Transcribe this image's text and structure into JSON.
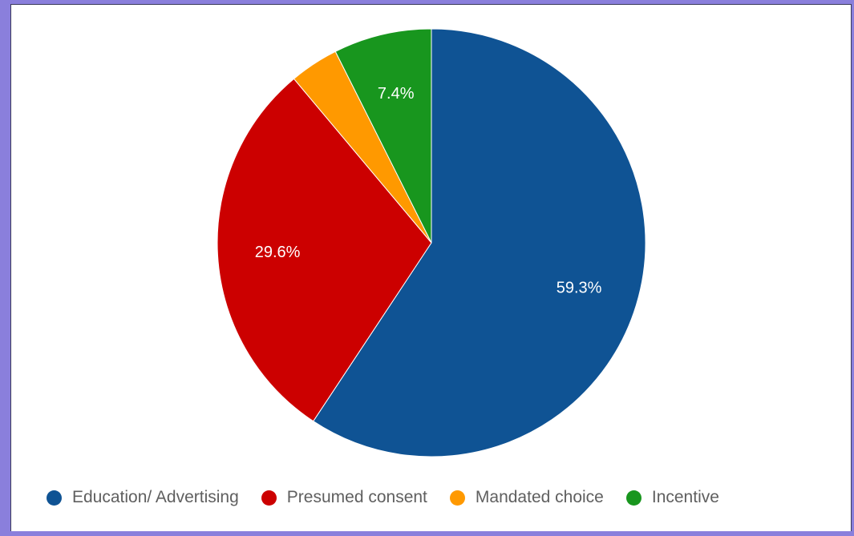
{
  "chart_data": {
    "type": "pie",
    "title": "",
    "start_angle_deg": 0,
    "direction": "clockwise",
    "slices": [
      {
        "name": "Education/ Advertising",
        "value": 59.3,
        "label": "59.3%",
        "color": "#0f5394"
      },
      {
        "name": "Presumed consent",
        "value": 29.6,
        "label": "29.6%",
        "color": "#cc0000"
      },
      {
        "name": "Mandated choice",
        "value": 3.7,
        "label": "",
        "color": "#ff9900"
      },
      {
        "name": "Incentive",
        "value": 7.4,
        "label": "7.4%",
        "color": "#18961e"
      }
    ],
    "legend": {
      "position": "bottom"
    }
  }
}
